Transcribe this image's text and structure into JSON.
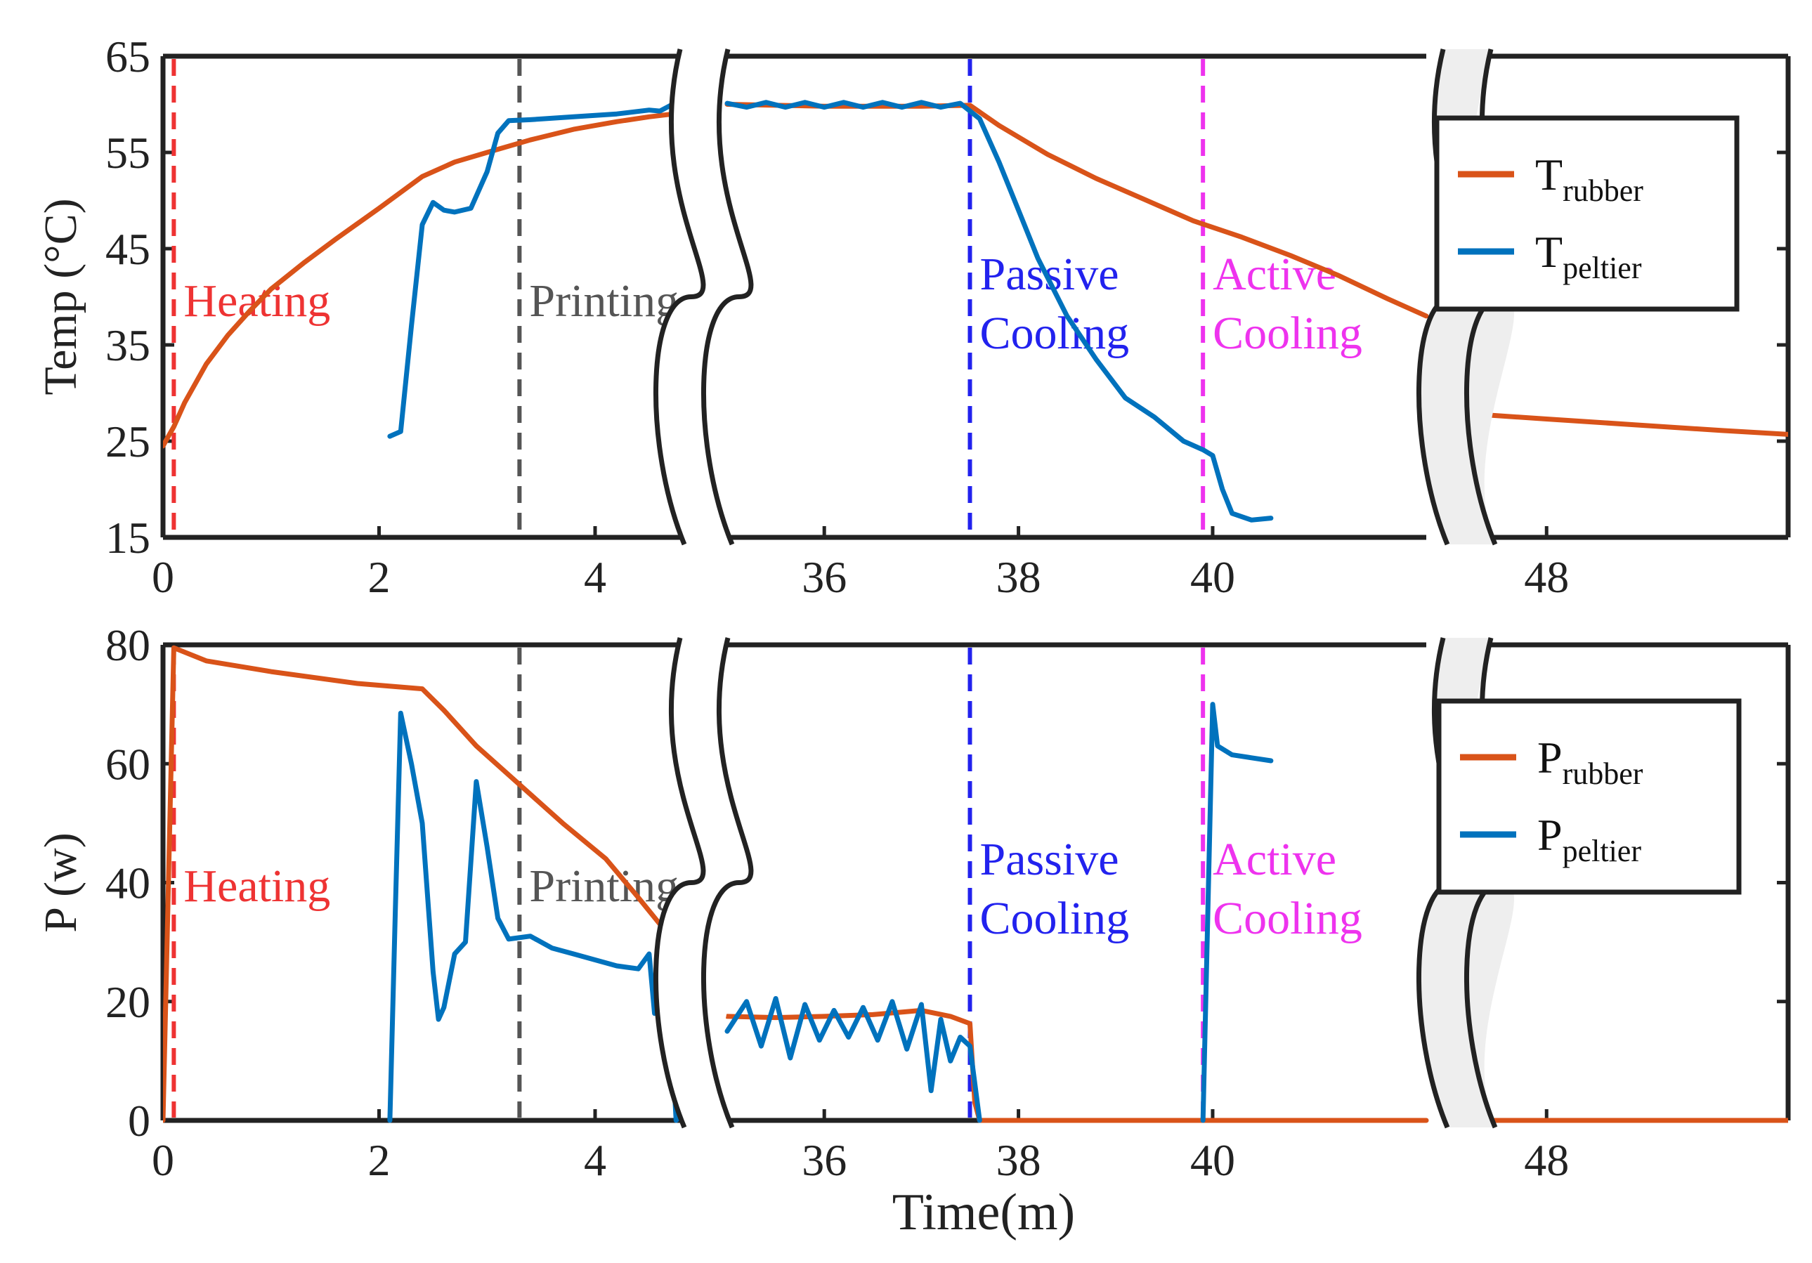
{
  "colors": {
    "rubber": "#d95319",
    "peltier": "#0072bd",
    "heating": "#ee3333",
    "printing": "#555555",
    "passive": "#2222ee",
    "active": "#ee33ee",
    "axis": "#222222",
    "break_fill": "#eeeeee"
  },
  "chart_data": [
    {
      "type": "line",
      "id": "temperature",
      "ylabel": "Temp (°C)",
      "xlabel": "",
      "ylim": [
        15,
        65
      ],
      "yticks": [
        15,
        25,
        35,
        45,
        55,
        65
      ],
      "axis_segments": [
        {
          "xlim": [
            0,
            4.8
          ],
          "xticks": [
            0,
            2,
            4
          ]
        },
        {
          "xlim": [
            35,
            42.2
          ],
          "xticks": [
            36,
            38,
            40
          ]
        },
        {
          "xlim": [
            46.7,
            53.5
          ],
          "xticks": [
            48
          ]
        }
      ],
      "phases": [
        {
          "label": "Heating",
          "x": 0.1,
          "color_key": "heating"
        },
        {
          "label": "Printing",
          "x": 3.3,
          "color_key": "printing"
        },
        {
          "label": "Passive Cooling",
          "lines": [
            "Passive",
            "Cooling"
          ],
          "x": 37.5,
          "color_key": "passive"
        },
        {
          "label": "Active Cooling",
          "lines": [
            "Active",
            "Cooling"
          ],
          "x": 39.9,
          "color_key": "active"
        }
      ],
      "legend": [
        {
          "main": "T",
          "sub": "rubber",
          "color_key": "rubber"
        },
        {
          "main": "T",
          "sub": "peltier",
          "color_key": "peltier"
        }
      ],
      "series": [
        {
          "name": "T_rubber",
          "color_key": "rubber",
          "segments": [
            [
              [
                0,
                24.5
              ],
              [
                0.05,
                25.5
              ],
              [
                0.1,
                26.5
              ],
              [
                0.2,
                29
              ],
              [
                0.4,
                33
              ],
              [
                0.6,
                36
              ],
              [
                0.8,
                38.5
              ],
              [
                1.0,
                40.8
              ],
              [
                1.3,
                43.5
              ],
              [
                1.6,
                46
              ],
              [
                2.0,
                49.2
              ],
              [
                2.4,
                52.5
              ],
              [
                2.7,
                54
              ],
              [
                3.0,
                55
              ],
              [
                3.4,
                56.3
              ],
              [
                3.8,
                57.4
              ],
              [
                4.2,
                58.2
              ],
              [
                4.5,
                58.7
              ],
              [
                4.8,
                59.1
              ]
            ],
            [
              [
                35,
                60
              ],
              [
                35.5,
                59.9
              ],
              [
                36,
                59.8
              ],
              [
                36.5,
                59.8
              ],
              [
                37,
                59.8
              ],
              [
                37.5,
                59.9
              ],
              [
                37.8,
                57.8
              ],
              [
                38.3,
                54.8
              ],
              [
                38.8,
                52.3
              ],
              [
                39.3,
                50.1
              ],
              [
                39.8,
                47.9
              ],
              [
                40.3,
                46.2
              ],
              [
                40.8,
                44.3
              ],
              [
                41.3,
                42.2
              ],
              [
                41.8,
                39.8
              ],
              [
                42.2,
                38
              ]
            ],
            [
              [
                46.7,
                27.7
              ],
              [
                48,
                27.3
              ],
              [
                50,
                26.7
              ],
              [
                52,
                26.1
              ],
              [
                53.5,
                25.7
              ]
            ]
          ]
        },
        {
          "name": "T_peltier",
          "color_key": "peltier",
          "segments": [
            [
              [
                2.1,
                25.5
              ],
              [
                2.2,
                26
              ],
              [
                2.3,
                37
              ],
              [
                2.4,
                47.5
              ],
              [
                2.5,
                49.8
              ],
              [
                2.6,
                49
              ],
              [
                2.7,
                48.8
              ],
              [
                2.85,
                49.2
              ],
              [
                3.0,
                53
              ],
              [
                3.1,
                57
              ],
              [
                3.2,
                58.3
              ],
              [
                3.4,
                58.4
              ],
              [
                3.8,
                58.7
              ],
              [
                4.2,
                59
              ],
              [
                4.5,
                59.4
              ],
              [
                4.6,
                59.3
              ],
              [
                4.7,
                59.9
              ],
              [
                4.8,
                60
              ]
            ],
            [
              [
                35,
                60.1
              ],
              [
                35.2,
                59.7
              ],
              [
                35.4,
                60.2
              ],
              [
                35.6,
                59.7
              ],
              [
                35.8,
                60.2
              ],
              [
                36,
                59.7
              ],
              [
                36.2,
                60.2
              ],
              [
                36.4,
                59.7
              ],
              [
                36.6,
                60.2
              ],
              [
                36.8,
                59.7
              ],
              [
                37,
                60.2
              ],
              [
                37.2,
                59.7
              ],
              [
                37.4,
                60.1
              ],
              [
                37.6,
                58.5
              ],
              [
                37.8,
                54
              ],
              [
                38.0,
                49
              ],
              [
                38.2,
                44
              ],
              [
                38.5,
                38
              ],
              [
                38.8,
                33.5
              ],
              [
                39.1,
                29.5
              ],
              [
                39.4,
                27.5
              ],
              [
                39.7,
                25
              ],
              [
                39.9,
                24.1
              ],
              [
                40.0,
                23.5
              ],
              [
                40.1,
                20
              ],
              [
                40.2,
                17.5
              ],
              [
                40.4,
                16.8
              ],
              [
                40.6,
                17
              ]
            ]
          ]
        }
      ]
    },
    {
      "type": "line",
      "id": "power",
      "ylabel": "P (w)",
      "xlabel": "Time(m)",
      "ylim": [
        0,
        80
      ],
      "yticks": [
        0,
        20,
        40,
        60,
        80
      ],
      "axis_segments": [
        {
          "xlim": [
            0,
            4.8
          ],
          "xticks": [
            0,
            2,
            4
          ]
        },
        {
          "xlim": [
            35,
            42.2
          ],
          "xticks": [
            36,
            38,
            40
          ]
        },
        {
          "xlim": [
            46.7,
            53.5
          ],
          "xticks": [
            48
          ]
        }
      ],
      "phases": [
        {
          "label": "Heating",
          "x": 0.1,
          "color_key": "heating"
        },
        {
          "label": "Printing",
          "x": 3.3,
          "color_key": "printing"
        },
        {
          "label": "Passive Cooling",
          "lines": [
            "Passive",
            "Cooling"
          ],
          "x": 37.5,
          "color_key": "passive"
        },
        {
          "label": "Active Cooling",
          "lines": [
            "Active",
            "Cooling"
          ],
          "x": 39.9,
          "color_key": "active"
        }
      ],
      "legend": [
        {
          "main": "P",
          "sub": "rubber",
          "color_key": "rubber"
        },
        {
          "main": "P",
          "sub": "peltier",
          "color_key": "peltier"
        }
      ],
      "series": [
        {
          "name": "P_rubber",
          "color_key": "rubber",
          "segments": [
            [
              [
                0,
                0
              ],
              [
                0.1,
                79.5
              ],
              [
                0.4,
                77.3
              ],
              [
                1.0,
                75.5
              ],
              [
                1.8,
                73.5
              ],
              [
                2.4,
                72.6
              ],
              [
                2.6,
                69
              ],
              [
                2.9,
                63
              ],
              [
                3.3,
                56.5
              ],
              [
                3.7,
                50
              ],
              [
                4.1,
                44
              ],
              [
                4.4,
                37.5
              ],
              [
                4.6,
                33
              ],
              [
                4.8,
                28
              ]
            ],
            [
              [
                35,
                17.5
              ],
              [
                35.5,
                17.3
              ],
              [
                36,
                17.5
              ],
              [
                36.5,
                17.8
              ],
              [
                37,
                18.5
              ],
              [
                37.3,
                17.5
              ],
              [
                37.5,
                16.3
              ],
              [
                37.55,
                3
              ],
              [
                37.6,
                0
              ],
              [
                42.2,
                0
              ]
            ],
            [
              [
                46.7,
                0
              ],
              [
                53.5,
                0
              ]
            ]
          ]
        },
        {
          "name": "P_peltier",
          "color_key": "peltier",
          "segments": [
            [
              [
                2.1,
                0
              ],
              [
                2.15,
                35
              ],
              [
                2.2,
                68.5
              ],
              [
                2.3,
                60
              ],
              [
                2.4,
                50
              ],
              [
                2.5,
                25
              ],
              [
                2.55,
                17
              ],
              [
                2.6,
                19
              ],
              [
                2.7,
                28
              ],
              [
                2.8,
                30
              ],
              [
                2.9,
                57
              ],
              [
                3.0,
                46
              ],
              [
                3.1,
                34
              ],
              [
                3.2,
                30.5
              ],
              [
                3.4,
                31
              ],
              [
                3.6,
                29
              ],
              [
                3.8,
                28
              ],
              [
                4.0,
                27
              ],
              [
                4.2,
                26
              ],
              [
                4.4,
                25.5
              ],
              [
                4.5,
                28
              ],
              [
                4.55,
                18
              ],
              [
                4.6,
                21
              ],
              [
                4.7,
                17
              ],
              [
                4.75,
                0
              ],
              [
                4.8,
                1
              ]
            ],
            [
              [
                35,
                15
              ],
              [
                35.2,
                20
              ],
              [
                35.35,
                12.5
              ],
              [
                35.5,
                20.5
              ],
              [
                35.65,
                10.5
              ],
              [
                35.8,
                19.5
              ],
              [
                35.95,
                13.5
              ],
              [
                36.1,
                18.5
              ],
              [
                36.25,
                14
              ],
              [
                36.4,
                19
              ],
              [
                36.55,
                13.5
              ],
              [
                36.7,
                20
              ],
              [
                36.85,
                12
              ],
              [
                37.0,
                19.5
              ],
              [
                37.1,
                5
              ],
              [
                37.2,
                17
              ],
              [
                37.3,
                10
              ],
              [
                37.4,
                14
              ],
              [
                37.5,
                12.5
              ],
              [
                37.6,
                0
              ]
            ],
            [
              [
                39.9,
                0
              ],
              [
                40.0,
                70
              ],
              [
                40.05,
                63
              ],
              [
                40.2,
                61.5
              ],
              [
                40.4,
                61
              ],
              [
                40.6,
                60.5
              ]
            ]
          ]
        }
      ]
    }
  ]
}
